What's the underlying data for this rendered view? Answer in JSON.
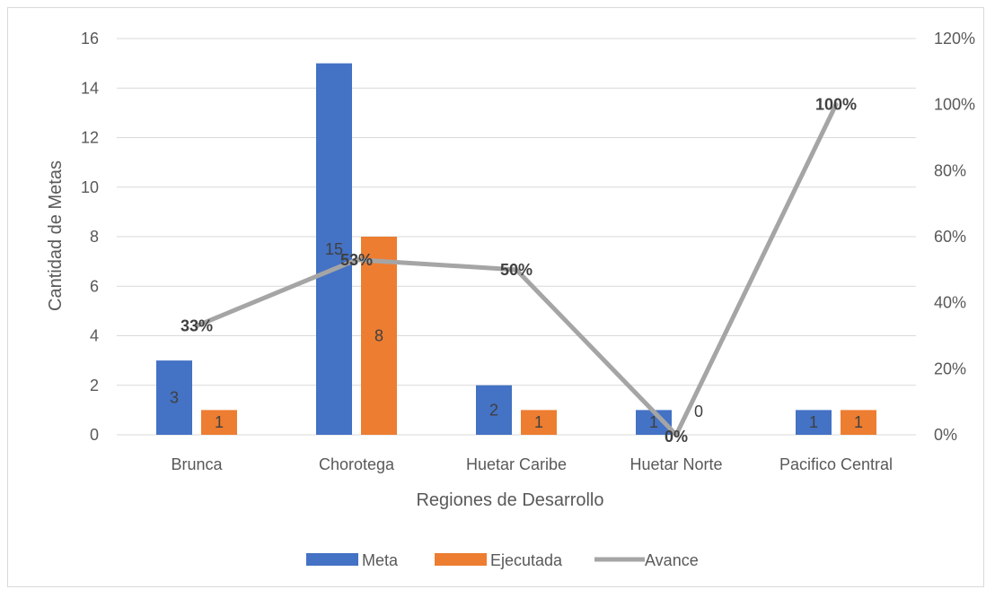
{
  "chart_data": {
    "type": "bar",
    "categories": [
      "Brunca",
      "Chorotega",
      "Huetar Caribe",
      "Huetar Norte",
      "Pacifico Central"
    ],
    "series": [
      {
        "name": "Meta",
        "type": "bar",
        "axis": "left",
        "color": "#4472C4",
        "values": [
          3,
          15,
          2,
          1,
          1
        ],
        "data_labels": [
          "3",
          "15",
          "2",
          "1",
          "1"
        ]
      },
      {
        "name": "Ejecutada",
        "type": "bar",
        "axis": "left",
        "color": "#ED7D31",
        "values": [
          1,
          8,
          1,
          0,
          1
        ],
        "data_labels": [
          "1",
          "8",
          "1",
          "0",
          "1"
        ]
      },
      {
        "name": "Avance",
        "type": "line",
        "axis": "right",
        "color": "#A5A5A5",
        "values": [
          0.33,
          0.53,
          0.5,
          0.0,
          1.0
        ],
        "data_labels": [
          "33%",
          "53%",
          "50%",
          "0%",
          "100%"
        ]
      }
    ],
    "xlabel": "Regiones de Desarrollo",
    "ylabel": "Cantidad de Metas",
    "ylim": [
      0,
      16
    ],
    "y_ticks": [
      "0",
      "2",
      "4",
      "6",
      "8",
      "10",
      "12",
      "14",
      "16"
    ],
    "y2lim": [
      0,
      1.2
    ],
    "y2_ticks": [
      "0%",
      "20%",
      "40%",
      "60%",
      "80%",
      "100%",
      "120%"
    ],
    "grid": true,
    "legend_position": "bottom",
    "gridline_color": "#d9d9d9"
  }
}
